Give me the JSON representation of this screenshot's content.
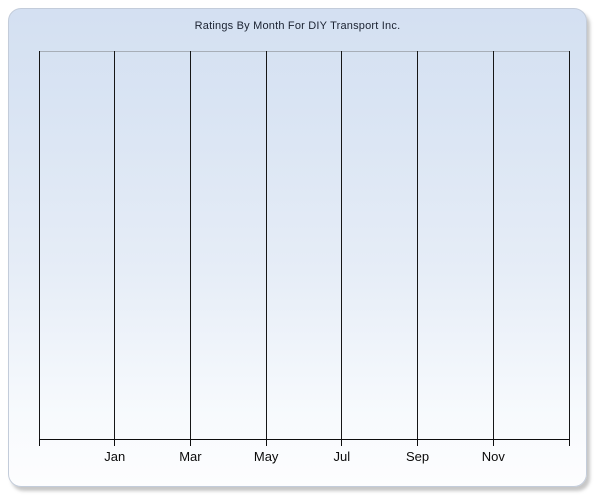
{
  "chart_data": {
    "type": "line",
    "title": "Ratings By Month For DIY Transport Inc.",
    "subtitle": "",
    "xlabel": "",
    "ylabel": "",
    "series": [],
    "note": "empty plot area - no data points, bars or lines rendered",
    "x_axis": {
      "tick_labels": [
        "Jan",
        "Mar",
        "May",
        "Jul",
        "Sep",
        "Nov"
      ],
      "gridline_count": 8,
      "labeled_gridline_indices": [
        1,
        2,
        3,
        4,
        5,
        6
      ],
      "implied_range": "12 months (labels every 2 months)"
    },
    "y_axis": {
      "tick_labels": [],
      "visible": false
    },
    "layout": {
      "grid": "vertical gridlines only",
      "legend": "none"
    }
  },
  "colors": {
    "page_background": "#ffffff",
    "panel_gradient_top": "#d4e0f2",
    "panel_gradient_bottom": "#fdfdfe",
    "panel_border": "#c3ccda",
    "panel_shadow": "#828282",
    "gridline": "#161616",
    "axis_line": "#0d0d0d",
    "plot_top_border": "#a7aeb7",
    "title_text": "#1b2231",
    "tick_label_text": "#0a0a0a"
  }
}
